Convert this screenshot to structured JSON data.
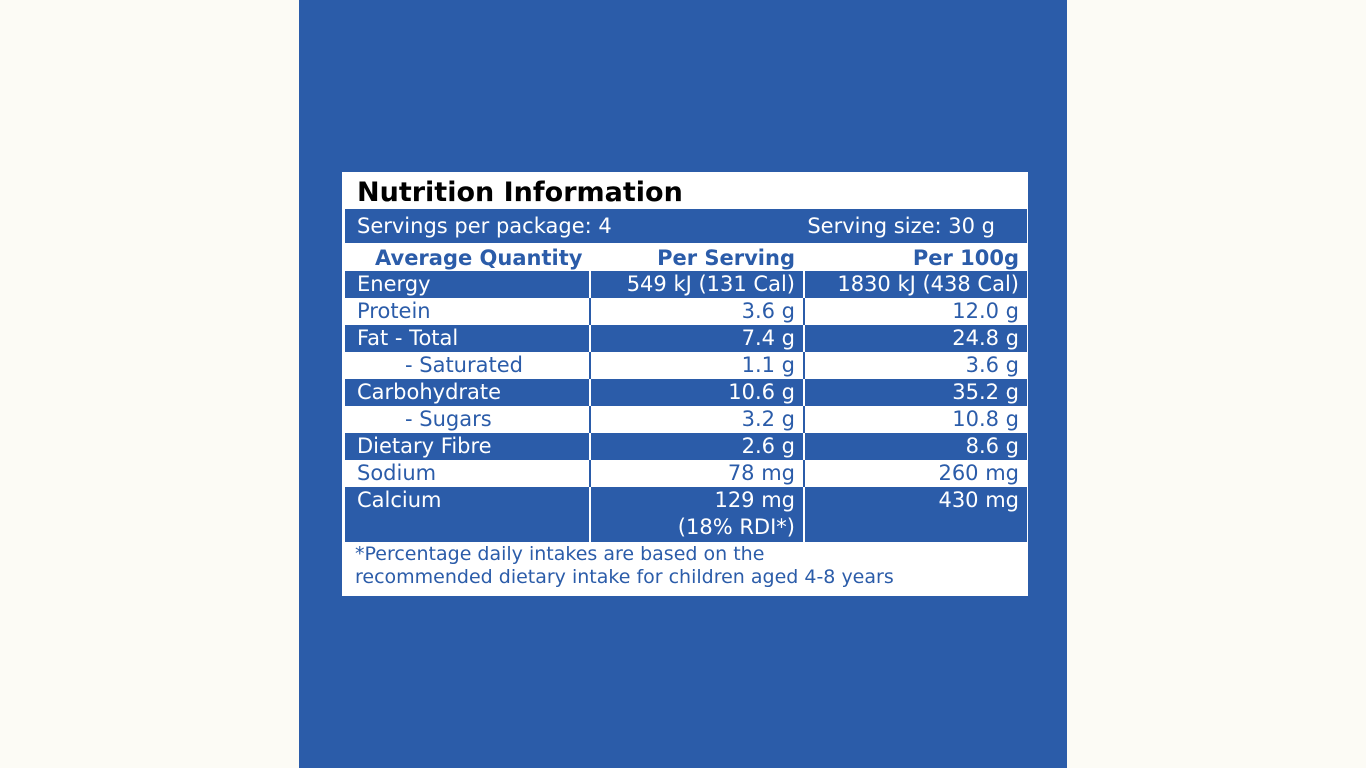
{
  "label": {
    "title": "Nutrition Information",
    "servings_per_package": "Servings per package: 4",
    "serving_size": "Serving size: 30 g",
    "columns": {
      "quantity": "Average Quantity",
      "per_serving": "Per Serving",
      "per_100g": "Per 100g"
    },
    "rows": [
      {
        "name": "Energy",
        "per_serving": "549 kJ (131 Cal)",
        "per_100g": "1830 kJ (438 Cal)"
      },
      {
        "name": "Protein",
        "per_serving": "3.6 g",
        "per_100g": "12.0 g"
      },
      {
        "name": "Fat - Total",
        "per_serving": "7.4 g",
        "per_100g": "24.8 g"
      },
      {
        "name": "- Saturated",
        "per_serving": "1.1 g",
        "per_100g": "3.6 g"
      },
      {
        "name": "Carbohydrate",
        "per_serving": "10.6 g",
        "per_100g": "35.2 g"
      },
      {
        "name": "- Sugars",
        "per_serving": "3.2 g",
        "per_100g": "10.8 g"
      },
      {
        "name": "Dietary Fibre",
        "per_serving": "2.6 g",
        "per_100g": "8.6 g"
      },
      {
        "name": "Sodium",
        "per_serving": "78 mg",
        "per_100g": "260 mg"
      },
      {
        "name": "Calcium",
        "per_serving": "129 mg",
        "per_serving_note": "(18% RDI*)",
        "per_100g": "430 mg"
      }
    ],
    "footnote_line1": "*Percentage daily intakes are based on the",
    "footnote_line2": "recommended dietary intake for children aged 4-8 years"
  },
  "colors": {
    "brand_blue": "#2b5ca9",
    "background": "#fcfbf5",
    "label_white": "#ffffff"
  }
}
